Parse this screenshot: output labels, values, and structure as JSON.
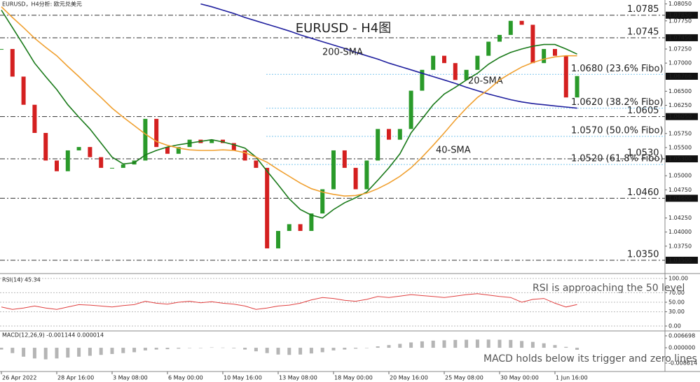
{
  "header": "EURUSD，H4分析: 欧元兑美元",
  "chart_data": [
    {
      "type": "line",
      "title": "EURUSD - H4图",
      "categories": [
        "26 Apr 2022",
        null,
        null,
        null,
        null,
        "28 Apr 16:00",
        null,
        null,
        null,
        null,
        "3 May 08:00",
        null,
        null,
        null,
        null,
        "6 May 00:00",
        null,
        null,
        null,
        null,
        "10 May 16:00",
        null,
        null,
        null,
        null,
        "13 May 08:00",
        null,
        null,
        null,
        null,
        "18 May 00:00",
        null,
        null,
        null,
        null,
        "20 May 16:00",
        null,
        null,
        null,
        null,
        "25 May 08:00",
        null,
        null,
        null,
        null,
        "30 May 00:00",
        null,
        null,
        null,
        null,
        "1 Jun 16:00",
        null,
        null,
        null,
        null,
        null,
        null,
        null,
        null,
        null
      ],
      "ylim": [
        1.034,
        1.0812
      ],
      "yticks": [
        {
          "value": 1.0805,
          "label": "1.08050"
        },
        {
          "value": 1.0775,
          "label": "1.07750"
        },
        {
          "value": 1.0725,
          "label": "1.07250"
        },
        {
          "value": 1.07,
          "label": "1.07000"
        },
        {
          "value": 1.065,
          "label": "1.06500"
        },
        {
          "value": 1.0625,
          "label": "1.06250"
        },
        {
          "value": 1.0575,
          "label": "1.05750"
        },
        {
          "value": 1.055,
          "label": "1.05500"
        },
        {
          "value": 1.05,
          "label": "1.05000"
        },
        {
          "value": 1.0475,
          "label": "1.04750"
        },
        {
          "value": 1.0425,
          "label": "1.04250"
        },
        {
          "value": 1.04,
          "label": "1.04000"
        },
        {
          "value": 1.0375,
          "label": "1.03750"
        }
      ],
      "price_tags": [
        {
          "value": 1.0785,
          "label": "1.07850"
        },
        {
          "value": 1.0745,
          "label": "1.07450"
        },
        {
          "value": 1.06766,
          "label": "1.06766"
        },
        {
          "value": 1.0605,
          "label": "1.06050"
        },
        {
          "value": 1.053,
          "label": "1.05300"
        },
        {
          "value": 1.046,
          "label": "1.04600"
        },
        {
          "value": 1.035,
          "label": "1.03500"
        }
      ],
      "levels": [
        {
          "value": 1.0785,
          "label": "1.0785",
          "color": "#e3202a",
          "style": "level"
        },
        {
          "value": 1.0745,
          "label": "1.0745",
          "color": "#e3202a",
          "style": "level"
        },
        {
          "value": 1.068,
          "label": "1.0680 (23.6% Fibo)",
          "color": "#3fa7e0",
          "style": "fibo"
        },
        {
          "value": 1.062,
          "label": "1.0620 (38.2% Fibo)",
          "color": "#3fa7e0",
          "style": "fibo"
        },
        {
          "value": 1.0605,
          "label": "1.0605",
          "color": "#2e7d32",
          "style": "level"
        },
        {
          "value": 1.057,
          "label": "1.0570 (50.0% Fibo)",
          "color": "#3fa7e0",
          "style": "fibo"
        },
        {
          "value": 1.053,
          "label": "1.0530",
          "color": "#2e7d32",
          "style": "level"
        },
        {
          "value": 1.052,
          "label": "1.0520 (61.8% Fibo)",
          "color": "#3fa7e0",
          "style": "fibo"
        },
        {
          "value": 1.046,
          "label": "1.0460",
          "color": "#2e7d32",
          "style": "level"
        },
        {
          "value": 1.035,
          "label": "1.0350",
          "color": "#2e7d32",
          "style": "level"
        }
      ],
      "series": [
        {
          "style": "candle",
          "up_color": "#2a9a2a",
          "down_color": "#d42020",
          "values": [
            1.0725,
            1.0676,
            1.0626,
            1.0576,
            1.0527,
            1.0508,
            1.0545,
            1.0551,
            1.0533,
            1.0514,
            1.0514,
            1.052,
            1.0527,
            1.0601,
            1.0551,
            1.0539,
            1.0551,
            1.0564,
            1.0558,
            1.0564,
            1.0558,
            1.0545,
            1.0527,
            1.0514,
            1.0371,
            1.0402,
            1.0414,
            1.0402,
            1.0433,
            1.0476,
            1.0545,
            1.0514,
            1.0476,
            1.0527,
            1.0583,
            1.0564,
            1.0583,
            1.0651,
            1.0688,
            1.0713,
            1.07,
            1.067,
            1.0688,
            1.0713,
            1.0738,
            1.075,
            1.0775,
            1.0768,
            1.07,
            1.0725,
            1.0713,
            1.0639,
            1.0677,
            null,
            null,
            null,
            null,
            null,
            null,
            null
          ]
        },
        {
          "name": "200-SMA",
          "style": "line",
          "color": "#1f1f9e",
          "values": [
            null,
            null,
            null,
            null,
            null,
            null,
            null,
            null,
            null,
            null,
            null,
            null,
            null,
            null,
            null,
            null,
            null,
            null,
            1.0805,
            1.08,
            1.0794,
            1.0788,
            1.0781,
            1.0775,
            1.0769,
            1.0763,
            1.0757,
            1.075,
            1.0744,
            1.0738,
            1.0732,
            1.0726,
            1.0719,
            1.0713,
            1.0707,
            1.07,
            1.0694,
            1.0688,
            1.0682,
            1.0676,
            1.067,
            1.0664,
            1.0657,
            1.0651,
            1.0645,
            1.064,
            1.0635,
            1.0631,
            1.0628,
            1.0626,
            1.0624,
            1.0622,
            1.062,
            null,
            null,
            null,
            null,
            null,
            null,
            null
          ]
        },
        {
          "name": "20-SMA",
          "style": "line",
          "color": "#1a7a1a",
          "values": [
            1.0794,
            1.0763,
            1.0732,
            1.07,
            1.0676,
            1.0653,
            1.0626,
            1.0604,
            1.0583,
            1.0558,
            1.0533,
            1.0521,
            1.0523,
            1.0537,
            1.0545,
            1.0551,
            1.0555,
            1.0558,
            1.0561,
            1.0564,
            1.056,
            1.0555,
            1.0549,
            1.0533,
            1.0508,
            1.0484,
            1.0459,
            1.044,
            1.043,
            1.0425,
            1.044,
            1.0452,
            1.0461,
            1.0471,
            1.0492,
            1.0514,
            1.0539,
            1.0576,
            1.0601,
            1.0626,
            1.0645,
            1.0657,
            1.067,
            1.0682,
            1.0698,
            1.071,
            1.0719,
            1.0725,
            1.073,
            1.0733,
            1.0733,
            1.0725,
            1.0716,
            null,
            null,
            null,
            null,
            null,
            null,
            null
          ]
        },
        {
          "name": "40-SMA",
          "style": "line",
          "color": "#f0a030",
          "values": [
            1.08,
            1.0781,
            1.0763,
            1.0744,
            1.0728,
            1.0713,
            1.0694,
            1.0676,
            1.0657,
            1.0639,
            1.062,
            1.0604,
            1.0589,
            1.0574,
            1.0561,
            1.0554,
            1.0549,
            1.0546,
            1.0545,
            1.0545,
            1.0546,
            1.0545,
            1.0541,
            1.0533,
            1.0524,
            1.0511,
            1.0499,
            1.0487,
            1.0477,
            1.0471,
            1.0467,
            1.0464,
            1.0465,
            1.0469,
            1.0477,
            1.0487,
            1.0499,
            1.0514,
            1.0533,
            1.0554,
            1.0576,
            1.0599,
            1.062,
            1.0639,
            1.0653,
            1.067,
            1.0682,
            1.0693,
            1.0701,
            1.0707,
            1.0711,
            1.0713,
            1.0713,
            null,
            null,
            null,
            null,
            null,
            null,
            null
          ]
        }
      ]
    },
    {
      "type": "line",
      "title": "RSI(14) 45.34",
      "note": "RSI is approaching the 50 level",
      "ylim": [
        0,
        100
      ],
      "grid": true,
      "yticks": [
        {
          "value": 100,
          "label": "100.00"
        },
        {
          "value": 70,
          "label": "70.00"
        },
        {
          "value": 50,
          "label": "50.00"
        },
        {
          "value": 30,
          "label": "30.00"
        },
        {
          "value": 0,
          "label": "0.00"
        }
      ],
      "series": [
        {
          "style": "line",
          "color": "#e04040",
          "values": [
            40,
            35,
            38,
            42,
            38,
            35,
            40,
            45,
            44,
            42,
            40,
            43,
            45,
            52,
            48,
            46,
            50,
            52,
            49,
            51,
            48,
            46,
            42,
            35,
            38,
            42,
            44,
            48,
            55,
            60,
            58,
            54,
            52,
            56,
            62,
            60,
            63,
            66,
            64,
            62,
            60,
            63,
            66,
            68,
            65,
            62,
            60,
            50,
            56,
            58,
            48,
            40,
            45.34,
            null,
            null,
            null,
            null,
            null,
            null,
            null
          ]
        }
      ]
    },
    {
      "type": "bar",
      "title": "MACD(12,26,9) -0.001144 0.000014",
      "note": "MACD holds below its trigger and zero lines",
      "ylim": [
        -0.008614,
        0.006698
      ],
      "yticks": [
        0.006698,
        {
          "value": 0,
          "label": "0.000000"
        },
        -0.008614
      ],
      "series": [
        {
          "color": "#b5b5b5",
          "values": [
            -0.001,
            -0.003,
            -0.005,
            -0.006,
            -0.0065,
            -0.006,
            -0.0055,
            -0.005,
            -0.0045,
            -0.004,
            -0.0035,
            -0.003,
            -0.0025,
            -0.0015,
            -0.001,
            -0.0008,
            -0.0005,
            -0.0002,
            0,
            0.0002,
            0.0001,
            -0.0003,
            -0.001,
            -0.002,
            -0.003,
            -0.0038,
            -0.004,
            -0.0038,
            -0.0032,
            -0.0025,
            -0.0015,
            -0.001,
            -0.0005,
            0,
            0.0008,
            0.0015,
            0.0022,
            0.003,
            0.0036,
            0.004,
            0.0042,
            0.0044,
            0.0045,
            0.0046,
            0.0046,
            0.0045,
            0.0044,
            0.0038,
            0.0033,
            0.0025,
            0.0015,
            0.0005,
            -0.001144,
            null,
            null,
            null,
            null,
            null,
            null,
            null
          ]
        }
      ]
    }
  ]
}
